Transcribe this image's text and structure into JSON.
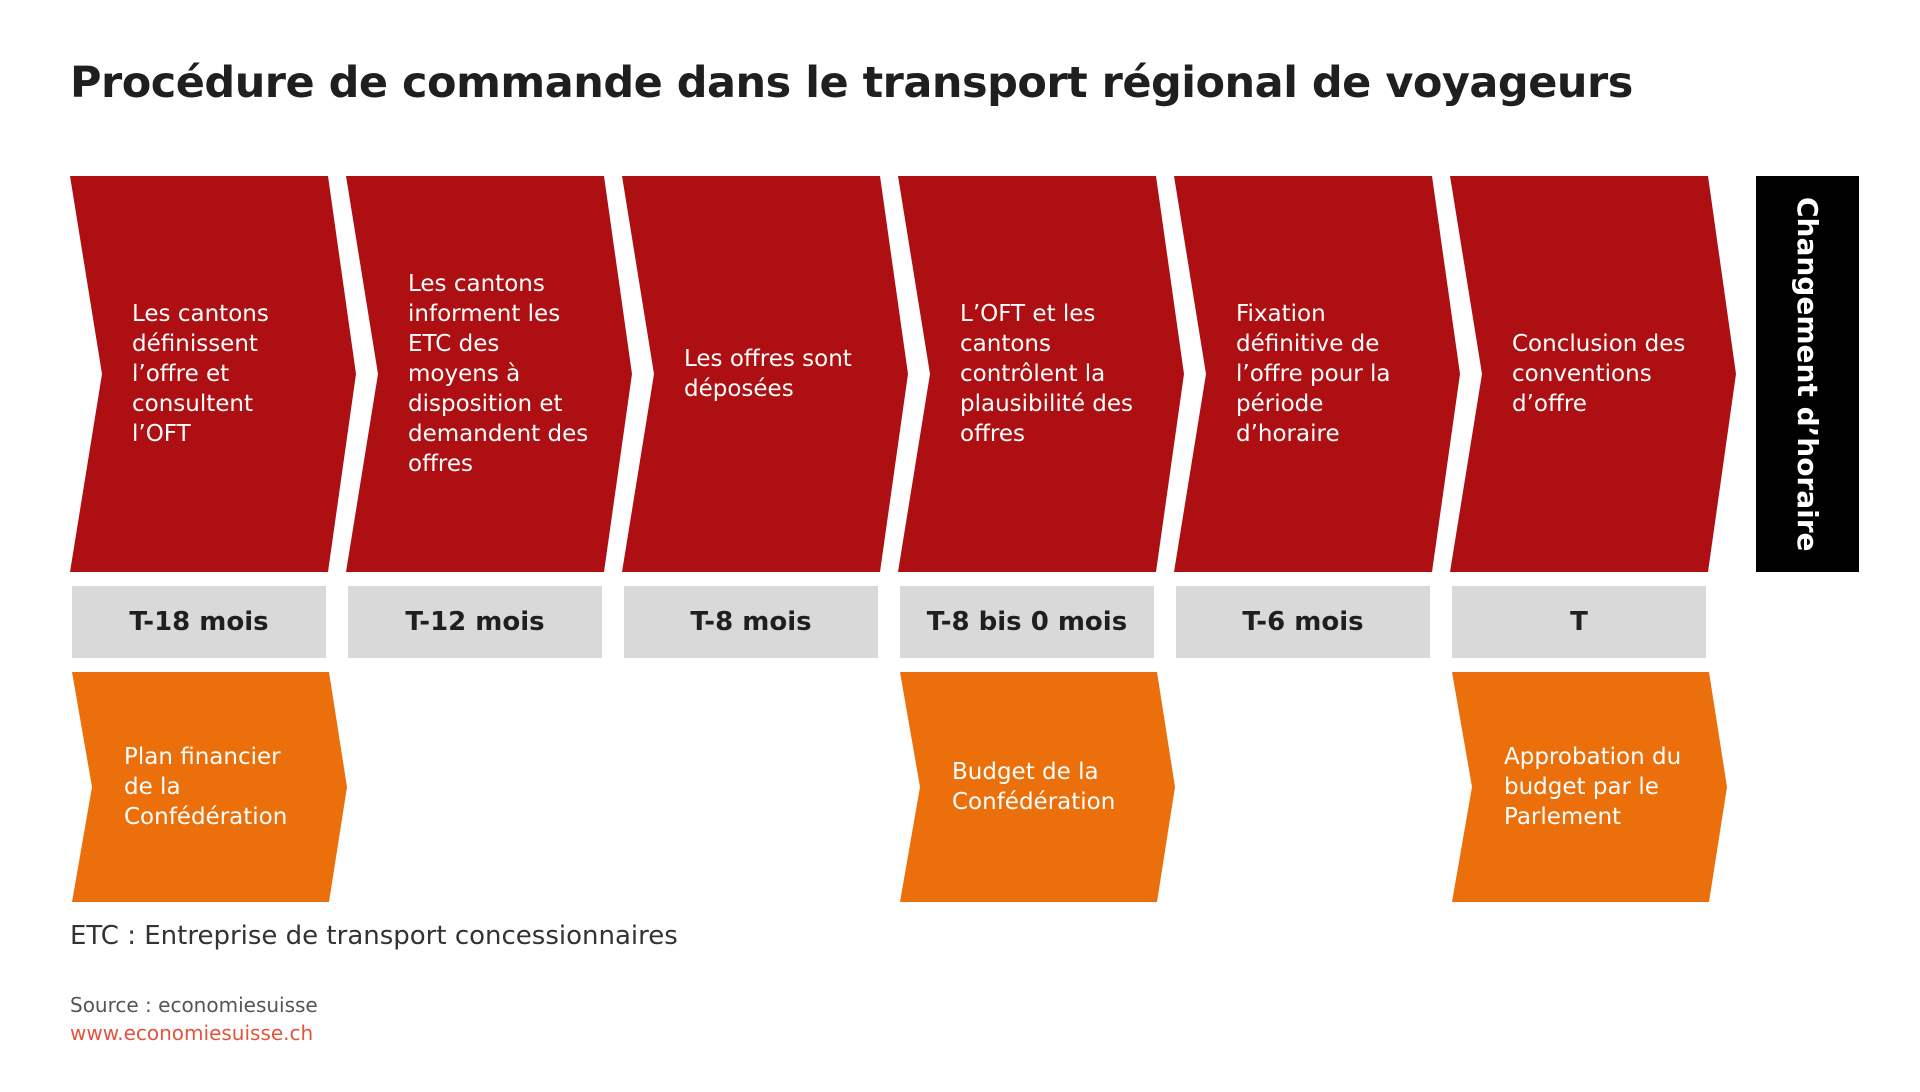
{
  "title": "Procédure de commande dans le transport régional de voyageurs",
  "steps": [
    {
      "text": "Les cantons\ndéfinissent\nl’offre et\nconsultent\nl’OFT",
      "time": "T-18 mois"
    },
    {
      "text": "Les cantons\ninforment les\nETC des\nmoyens à\ndisposition et\ndemandent des\noffres",
      "time": "T-12 mois"
    },
    {
      "text": "Les offres sont\ndéposées",
      "time": "T-8 mois"
    },
    {
      "text": "L’OFT et les\ncantons\ncontrôlent la\nplausibilité des\noffres",
      "time": "T-8 bis 0 mois"
    },
    {
      "text": "Fixation\ndéfinitive de\nl’offre pour la\npériode\nd’horaire",
      "time": "T-6 mois"
    },
    {
      "text": "Conclusion des\nconventions\nd’offre",
      "time": "T"
    }
  ],
  "timetable_change": "Changement d’horaire",
  "budget_steps": [
    {
      "text": "Plan financier\nde la\nConfédération"
    },
    {
      "text": "Budget de la\nConfédération"
    },
    {
      "text": "Approbation du\nbudget par le\nParlement"
    }
  ],
  "footnote": "ETC : Entreprise de transport concessionnaires",
  "source": "Source : economiesuisse",
  "website": "www.economiesuisse.ch",
  "colors": {
    "step": "#ad0f12",
    "budget": "#eb6f0a",
    "time_box": "#d9d9d9",
    "timetable_change": "#000000",
    "website": "#e5533d"
  }
}
